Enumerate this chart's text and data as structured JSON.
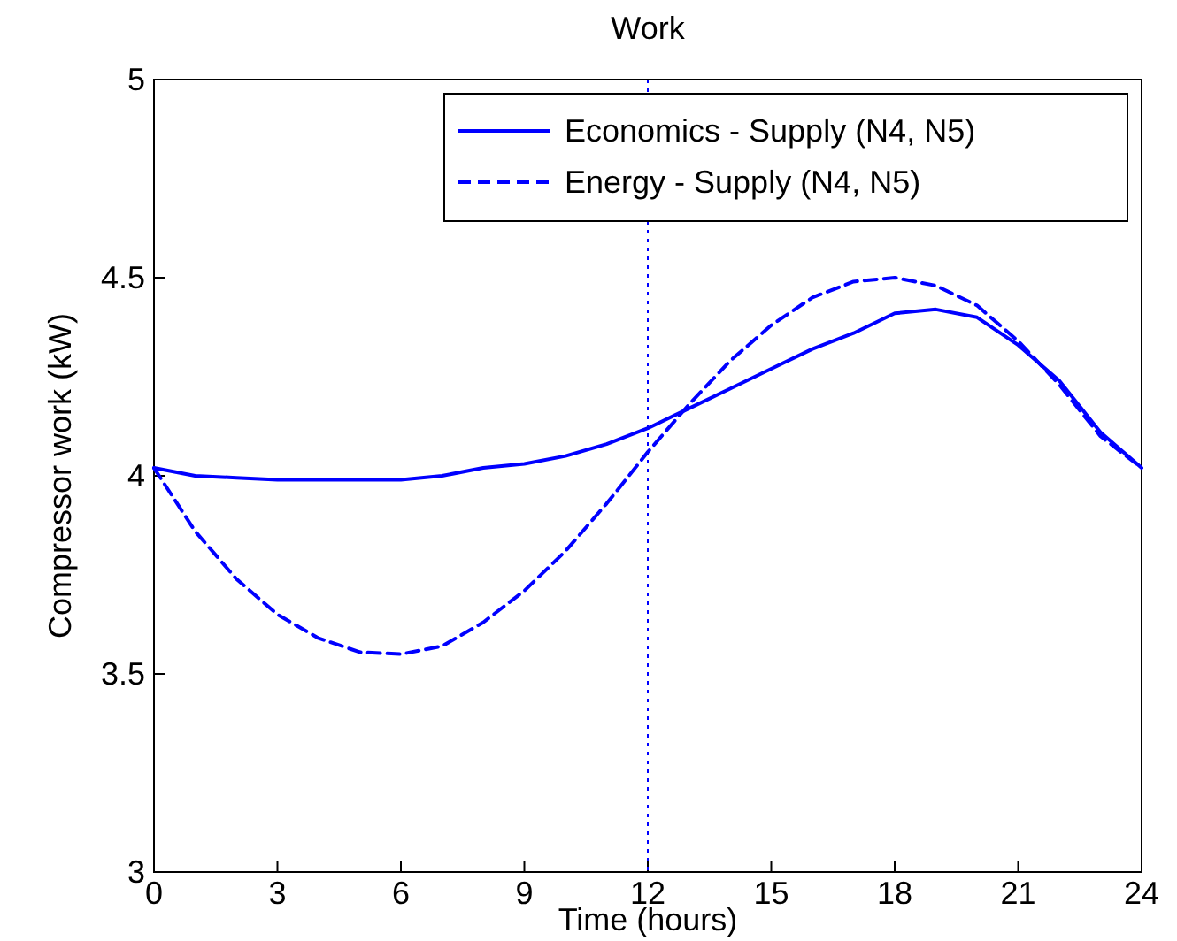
{
  "chart_data": {
    "type": "line",
    "title": "Work",
    "xlabel": "Time (hours)",
    "ylabel": "Compressor work (kW)",
    "x": [
      0,
      1,
      2,
      3,
      4,
      5,
      6,
      7,
      8,
      9,
      10,
      11,
      12,
      13,
      14,
      15,
      16,
      17,
      18,
      19,
      20,
      21,
      22,
      23,
      24
    ],
    "series": [
      {
        "name": "Economics - Supply (N4, N5)",
        "color": "#0000ff",
        "line_style": "solid",
        "values": [
          4.02,
          4.0,
          3.995,
          3.99,
          3.99,
          3.99,
          3.99,
          4.0,
          4.02,
          4.03,
          4.05,
          4.08,
          4.12,
          4.17,
          4.22,
          4.27,
          4.32,
          4.36,
          4.41,
          4.42,
          4.4,
          4.33,
          4.24,
          4.11,
          4.02
        ]
      },
      {
        "name": "Energy - Supply (N4, N5)",
        "color": "#0000ff",
        "line_style": "dashed",
        "values": [
          4.02,
          3.86,
          3.74,
          3.65,
          3.59,
          3.555,
          3.55,
          3.57,
          3.63,
          3.71,
          3.81,
          3.93,
          4.06,
          4.18,
          4.29,
          4.38,
          4.45,
          4.49,
          4.5,
          4.48,
          4.43,
          4.34,
          4.23,
          4.1,
          4.02
        ]
      }
    ],
    "xlim": [
      0,
      24
    ],
    "xticks": [
      0,
      3,
      6,
      9,
      12,
      15,
      18,
      21,
      24
    ],
    "ylim": [
      3,
      5
    ],
    "yticks": [
      3,
      3.5,
      4,
      4.5,
      5
    ],
    "ref_lines": [
      {
        "axis": "x",
        "value": 12,
        "color": "#0000ff",
        "line_style": "dotted"
      }
    ],
    "legend": "top right",
    "grid": false
  }
}
